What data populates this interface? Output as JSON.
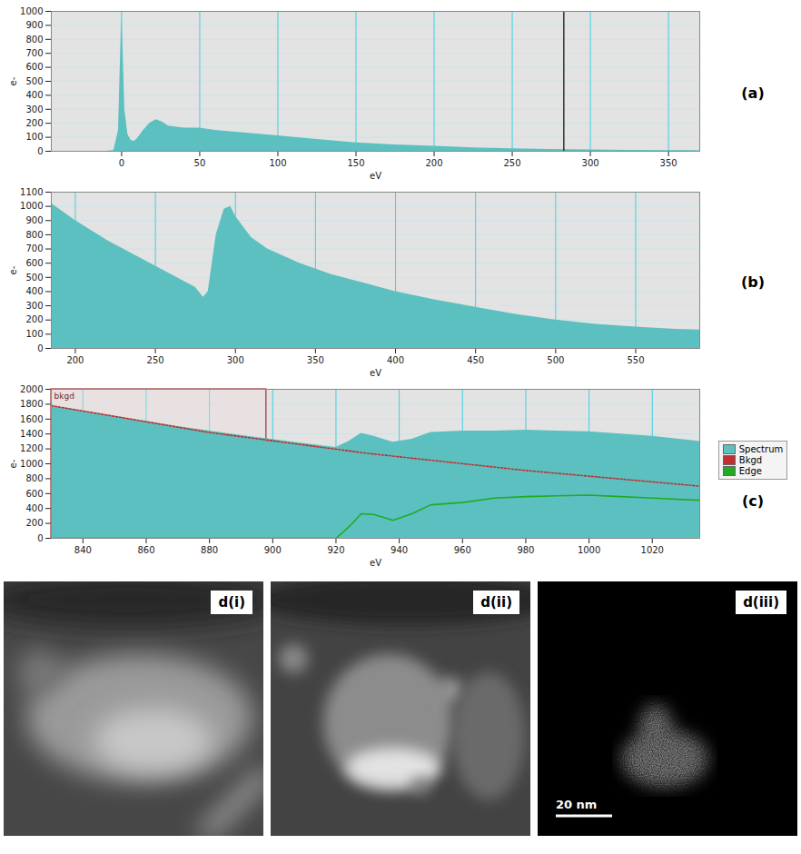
{
  "chart_data": [
    {
      "type": "area",
      "title": "(a)",
      "xlabel": "eV",
      "ylabel": "e-",
      "color": "#5cc0c0",
      "grid": true,
      "x": [
        -45,
        -10,
        -5,
        -2,
        0,
        1,
        2,
        4,
        6,
        8,
        10,
        14,
        18,
        22,
        26,
        30,
        40,
        50,
        60,
        80,
        100,
        125,
        150,
        175,
        200,
        225,
        250,
        275,
        300,
        325,
        350,
        370
      ],
      "values": [
        0,
        0,
        5,
        150,
        970,
        700,
        300,
        120,
        80,
        70,
        90,
        150,
        200,
        225,
        210,
        180,
        165,
        165,
        150,
        130,
        110,
        85,
        60,
        45,
        35,
        25,
        18,
        13,
        10,
        7,
        5,
        4
      ],
      "vlines": [
        283
      ],
      "xlim": [
        -45,
        370
      ],
      "xticks": [
        0,
        50,
        100,
        150,
        200,
        250,
        300,
        350
      ],
      "ylim": [
        0,
        1000
      ],
      "yticks": [
        0,
        100,
        200,
        300,
        400,
        500,
        600,
        700,
        800,
        900,
        1000
      ]
    },
    {
      "type": "area",
      "title": "(b)",
      "xlabel": "eV",
      "ylabel": "e-",
      "color": "#5cc0c0",
      "grid": true,
      "x": [
        185,
        200,
        220,
        240,
        260,
        275,
        280,
        283,
        288,
        293,
        297,
        300,
        310,
        320,
        340,
        360,
        380,
        400,
        425,
        450,
        475,
        500,
        525,
        550,
        575,
        590
      ],
      "values": [
        1020,
        900,
        760,
        640,
        520,
        430,
        360,
        400,
        800,
        980,
        1000,
        930,
        780,
        700,
        600,
        520,
        460,
        400,
        340,
        290,
        240,
        200,
        170,
        150,
        135,
        130
      ],
      "xlim": [
        185,
        590
      ],
      "xticks": [
        200,
        250,
        300,
        350,
        400,
        450,
        500,
        550
      ],
      "ylim": [
        0,
        1100
      ],
      "yticks": [
        0,
        100,
        200,
        300,
        400,
        500,
        600,
        700,
        800,
        900,
        1000,
        1100
      ]
    },
    {
      "type": "area",
      "title": "(c)",
      "xlabel": "eV",
      "ylabel": "e-",
      "grid": true,
      "legend": "right",
      "series": [
        {
          "name": "Spectrum",
          "type": "area",
          "color": "#5cc0c0",
          "x": [
            830,
            850,
            870,
            890,
            910,
            920,
            924,
            928,
            932,
            938,
            944,
            950,
            960,
            970,
            980,
            990,
            1000,
            1010,
            1020,
            1035
          ],
          "values": [
            1780,
            1640,
            1500,
            1380,
            1270,
            1220,
            1300,
            1410,
            1370,
            1290,
            1330,
            1420,
            1440,
            1440,
            1450,
            1440,
            1430,
            1400,
            1370,
            1300
          ]
        },
        {
          "name": "Bkgd",
          "type": "line",
          "line_style": "dotted",
          "color": "#c03030",
          "x": [
            830,
            880,
            930,
            980,
            1035
          ],
          "values": [
            1780,
            1420,
            1140,
            910,
            700
          ]
        },
        {
          "name": "Edge",
          "type": "line",
          "line_style": "solid",
          "color": "#22aa22",
          "x": [
            830,
            920,
            924,
            928,
            932,
            938,
            944,
            950,
            960,
            970,
            980,
            990,
            1000,
            1010,
            1020,
            1035
          ],
          "values": [
            0,
            0,
            150,
            330,
            320,
            240,
            330,
            450,
            480,
            540,
            560,
            570,
            580,
            560,
            540,
            510
          ]
        }
      ],
      "window": {
        "label": "bkgd",
        "range": [
          830,
          898
        ]
      },
      "xlim": [
        830,
        1035
      ],
      "xticks": [
        840,
        860,
        880,
        900,
        920,
        940,
        960,
        980,
        1000,
        1020
      ],
      "ylim": [
        0,
        2000
      ],
      "yticks": [
        0,
        200,
        400,
        600,
        800,
        1000,
        1200,
        1400,
        1600,
        1800,
        2000
      ]
    }
  ],
  "images": [
    {
      "label": "d(i)"
    },
    {
      "label": "d(ii)"
    },
    {
      "label": "d(iii)",
      "scale_bar": "20 nm"
    }
  ]
}
